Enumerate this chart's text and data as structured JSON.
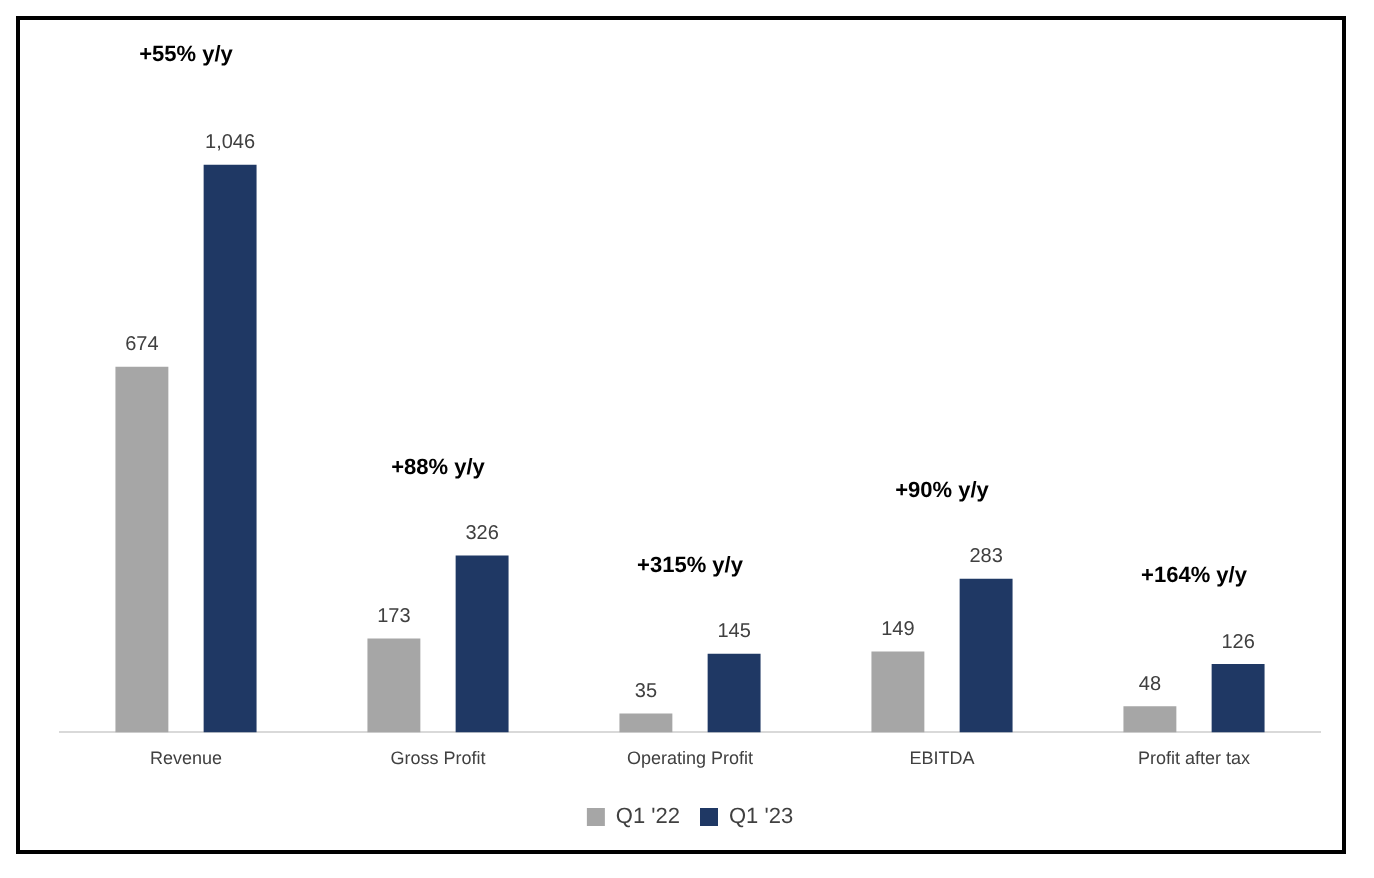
{
  "chart_data": {
    "type": "bar",
    "categories": [
      "Revenue",
      "Gross Profit",
      "Operating Profit",
      "EBITDA",
      "Profit after tax"
    ],
    "series": [
      {
        "name": "Q1 '22",
        "color": "#a6a6a6",
        "values": [
          674,
          173,
          35,
          149,
          48
        ],
        "value_labels": [
          "674",
          "173",
          "35",
          "149",
          "48"
        ]
      },
      {
        "name": "Q1 '23",
        "color": "#1f3864",
        "values": [
          1046,
          326,
          145,
          283,
          126
        ],
        "value_labels": [
          "1,046",
          "326",
          "145",
          "283",
          "126"
        ]
      }
    ],
    "legend": "bottom",
    "grid": false,
    "annotations": [
      "+55% y/y",
      "+88% y/y",
      "+315% y/y",
      "+90% y/y",
      "+164% y/y"
    ]
  }
}
